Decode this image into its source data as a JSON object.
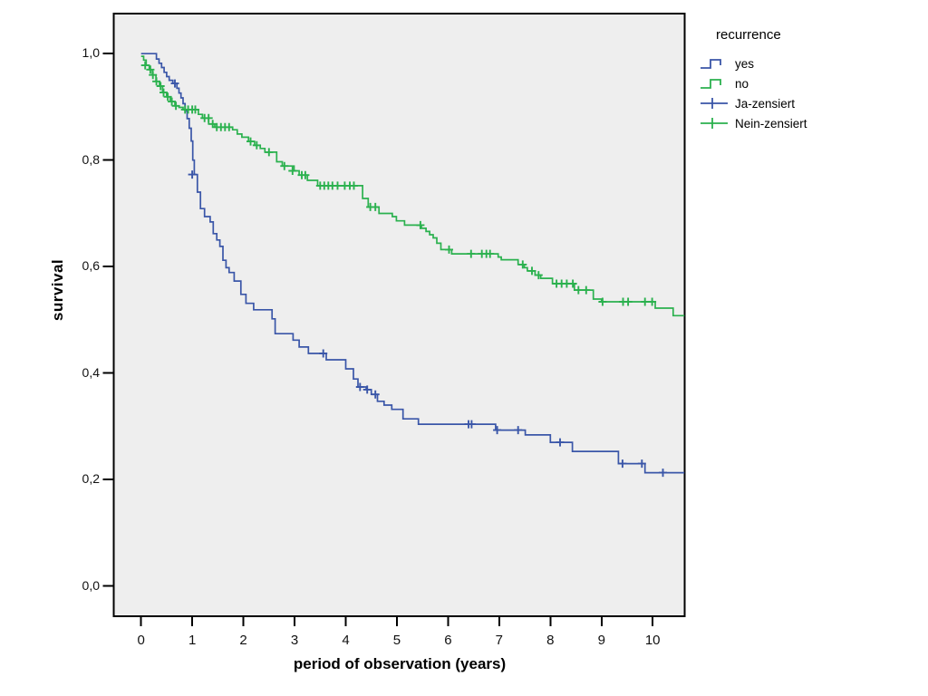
{
  "figure": {
    "background": "#ffffff",
    "plot_background": "#eeeeee",
    "frame_color": "#000000",
    "tick_color": "#111111"
  },
  "chart_data": {
    "type": "line",
    "subtype": "kaplan-meier-step",
    "title": "",
    "xlabel": "period of observation (years)",
    "ylabel": "survival",
    "xlim": [
      -0.53,
      10.65
    ],
    "ylim": [
      -0.06,
      1.08
    ],
    "grid": false,
    "x_ticks": [
      {
        "v": 0,
        "label": "0"
      },
      {
        "v": 1,
        "label": "1"
      },
      {
        "v": 2,
        "label": "2"
      },
      {
        "v": 3,
        "label": "3"
      },
      {
        "v": 4,
        "label": "4"
      },
      {
        "v": 5,
        "label": "5"
      },
      {
        "v": 6,
        "label": "6"
      },
      {
        "v": 7,
        "label": "7"
      },
      {
        "v": 8,
        "label": "8"
      },
      {
        "v": 9,
        "label": "9"
      },
      {
        "v": 10,
        "label": "10"
      }
    ],
    "y_ticks": [
      {
        "v": 0.0,
        "label": "0,0"
      },
      {
        "v": 0.2,
        "label": "0,2"
      },
      {
        "v": 0.4,
        "label": "0,4"
      },
      {
        "v": 0.6,
        "label": "0,6"
      },
      {
        "v": 0.8,
        "label": "0,8"
      },
      {
        "v": 1.0,
        "label": "1,0"
      }
    ],
    "legend": {
      "title": "recurrence",
      "position": "right",
      "items": [
        {
          "label": "yes",
          "color": "#3a56a8",
          "glyph": "step"
        },
        {
          "label": "no",
          "color": "#2bb14e",
          "glyph": "step"
        },
        {
          "label": "Ja-zensiert",
          "color": "#3a56a8",
          "glyph": "censor"
        },
        {
          "label": "Nein-zensiert",
          "color": "#2bb14e",
          "glyph": "censor"
        }
      ]
    },
    "series": [
      {
        "name": "yes",
        "color": "#3a56a8",
        "points": [
          [
            0.0,
            1.0
          ],
          [
            0.3,
            0.99
          ],
          [
            0.35,
            0.982
          ],
          [
            0.4,
            0.974
          ],
          [
            0.45,
            0.965
          ],
          [
            0.5,
            0.957
          ],
          [
            0.55,
            0.95
          ],
          [
            0.62,
            0.944
          ],
          [
            0.7,
            0.935
          ],
          [
            0.74,
            0.926
          ],
          [
            0.78,
            0.917
          ],
          [
            0.82,
            0.906
          ],
          [
            0.86,
            0.893
          ],
          [
            0.9,
            0.878
          ],
          [
            0.94,
            0.86
          ],
          [
            0.98,
            0.836
          ],
          [
            1.01,
            0.8
          ],
          [
            1.04,
            0.773
          ],
          [
            1.1,
            0.74
          ],
          [
            1.16,
            0.709
          ],
          [
            1.24,
            0.694
          ],
          [
            1.35,
            0.684
          ],
          [
            1.41,
            0.662
          ],
          [
            1.48,
            0.65
          ],
          [
            1.54,
            0.638
          ],
          [
            1.6,
            0.612
          ],
          [
            1.66,
            0.598
          ],
          [
            1.72,
            0.589
          ],
          [
            1.82,
            0.573
          ],
          [
            1.95,
            0.548
          ],
          [
            2.05,
            0.531
          ],
          [
            2.2,
            0.519
          ],
          [
            2.56,
            0.502
          ],
          [
            2.62,
            0.474
          ],
          [
            2.97,
            0.462
          ],
          [
            3.09,
            0.449
          ],
          [
            3.27,
            0.437
          ],
          [
            3.62,
            0.425
          ],
          [
            4.0,
            0.408
          ],
          [
            4.15,
            0.389
          ],
          [
            4.24,
            0.374
          ],
          [
            4.4,
            0.369
          ],
          [
            4.5,
            0.36
          ],
          [
            4.62,
            0.347
          ],
          [
            4.75,
            0.34
          ],
          [
            4.9,
            0.332
          ],
          [
            5.12,
            0.314
          ],
          [
            5.42,
            0.304
          ],
          [
            6.93,
            0.293
          ],
          [
            7.51,
            0.284
          ],
          [
            8.0,
            0.27
          ],
          [
            8.43,
            0.253
          ],
          [
            9.33,
            0.23
          ],
          [
            9.85,
            0.213
          ],
          [
            10.62,
            0.213
          ]
        ],
        "censors": [
          [
            0.66,
            0.944
          ],
          [
            1.0,
            0.773
          ],
          [
            3.56,
            0.437
          ],
          [
            4.28,
            0.374
          ],
          [
            4.42,
            0.369
          ],
          [
            4.58,
            0.36
          ],
          [
            6.4,
            0.304
          ],
          [
            6.46,
            0.304
          ],
          [
            6.96,
            0.293
          ],
          [
            7.37,
            0.293
          ],
          [
            8.19,
            0.27
          ],
          [
            9.41,
            0.23
          ],
          [
            9.79,
            0.23
          ],
          [
            10.2,
            0.213
          ]
        ]
      },
      {
        "name": "no",
        "color": "#2bb14e",
        "points": [
          [
            0.0,
            0.995
          ],
          [
            0.05,
            0.988
          ],
          [
            0.1,
            0.978
          ],
          [
            0.16,
            0.97
          ],
          [
            0.22,
            0.96
          ],
          [
            0.29,
            0.948
          ],
          [
            0.36,
            0.939
          ],
          [
            0.42,
            0.927
          ],
          [
            0.5,
            0.919
          ],
          [
            0.57,
            0.91
          ],
          [
            0.66,
            0.902
          ],
          [
            0.74,
            0.899
          ],
          [
            0.82,
            0.895
          ],
          [
            1.12,
            0.886
          ],
          [
            1.2,
            0.879
          ],
          [
            1.32,
            0.868
          ],
          [
            1.44,
            0.862
          ],
          [
            1.79,
            0.857
          ],
          [
            1.88,
            0.849
          ],
          [
            1.97,
            0.843
          ],
          [
            2.1,
            0.835
          ],
          [
            2.22,
            0.828
          ],
          [
            2.33,
            0.822
          ],
          [
            2.42,
            0.815
          ],
          [
            2.65,
            0.797
          ],
          [
            2.76,
            0.789
          ],
          [
            2.99,
            0.78
          ],
          [
            3.09,
            0.772
          ],
          [
            3.25,
            0.762
          ],
          [
            3.45,
            0.752
          ],
          [
            4.33,
            0.728
          ],
          [
            4.44,
            0.712
          ],
          [
            4.65,
            0.7
          ],
          [
            4.91,
            0.694
          ],
          [
            4.99,
            0.686
          ],
          [
            5.15,
            0.678
          ],
          [
            5.48,
            0.672
          ],
          [
            5.57,
            0.666
          ],
          [
            5.64,
            0.66
          ],
          [
            5.71,
            0.654
          ],
          [
            5.78,
            0.644
          ],
          [
            5.86,
            0.632
          ],
          [
            6.07,
            0.624
          ],
          [
            6.98,
            0.618
          ],
          [
            7.04,
            0.613
          ],
          [
            7.37,
            0.604
          ],
          [
            7.49,
            0.598
          ],
          [
            7.55,
            0.592
          ],
          [
            7.7,
            0.584
          ],
          [
            7.81,
            0.578
          ],
          [
            8.04,
            0.568
          ],
          [
            8.47,
            0.556
          ],
          [
            8.84,
            0.539
          ],
          [
            9.0,
            0.534
          ],
          [
            10.05,
            0.522
          ],
          [
            10.4,
            0.508
          ],
          [
            10.62,
            0.508
          ]
        ],
        "censors": [
          [
            0.08,
            0.978
          ],
          [
            0.18,
            0.97
          ],
          [
            0.23,
            0.96
          ],
          [
            0.3,
            0.948
          ],
          [
            0.38,
            0.939
          ],
          [
            0.44,
            0.927
          ],
          [
            0.52,
            0.919
          ],
          [
            0.6,
            0.91
          ],
          [
            0.68,
            0.902
          ],
          [
            0.86,
            0.895
          ],
          [
            0.92,
            0.895
          ],
          [
            1.0,
            0.895
          ],
          [
            1.06,
            0.895
          ],
          [
            1.24,
            0.879
          ],
          [
            1.32,
            0.879
          ],
          [
            1.4,
            0.868
          ],
          [
            1.48,
            0.862
          ],
          [
            1.56,
            0.862
          ],
          [
            1.64,
            0.862
          ],
          [
            1.72,
            0.862
          ],
          [
            2.14,
            0.835
          ],
          [
            2.26,
            0.828
          ],
          [
            2.5,
            0.815
          ],
          [
            2.8,
            0.789
          ],
          [
            2.96,
            0.78
          ],
          [
            3.14,
            0.772
          ],
          [
            3.21,
            0.772
          ],
          [
            3.5,
            0.752
          ],
          [
            3.58,
            0.752
          ],
          [
            3.66,
            0.752
          ],
          [
            3.74,
            0.752
          ],
          [
            3.84,
            0.752
          ],
          [
            3.98,
            0.752
          ],
          [
            4.08,
            0.752
          ],
          [
            4.16,
            0.752
          ],
          [
            4.48,
            0.712
          ],
          [
            4.58,
            0.712
          ],
          [
            5.46,
            0.678
          ],
          [
            6.02,
            0.632
          ],
          [
            6.45,
            0.624
          ],
          [
            6.66,
            0.624
          ],
          [
            6.75,
            0.624
          ],
          [
            6.82,
            0.624
          ],
          [
            7.46,
            0.604
          ],
          [
            7.64,
            0.592
          ],
          [
            7.77,
            0.584
          ],
          [
            8.12,
            0.568
          ],
          [
            8.22,
            0.568
          ],
          [
            8.32,
            0.568
          ],
          [
            8.44,
            0.568
          ],
          [
            8.55,
            0.556
          ],
          [
            8.7,
            0.556
          ],
          [
            9.02,
            0.534
          ],
          [
            9.42,
            0.534
          ],
          [
            9.52,
            0.534
          ],
          [
            9.85,
            0.534
          ],
          [
            9.99,
            0.534
          ]
        ]
      }
    ]
  }
}
